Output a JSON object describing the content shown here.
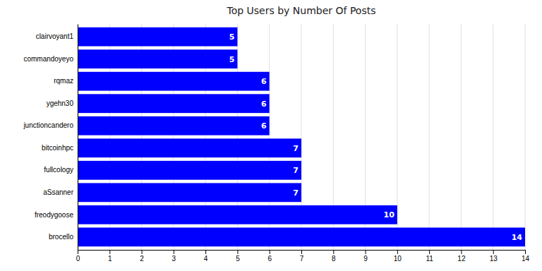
{
  "chart_data": {
    "type": "bar",
    "title": "Top Users by Number Of Posts",
    "orientation": "horizontal",
    "categories": [
      "clairvoyant1",
      "commandoyeyo",
      "rqmaz",
      "ygehn30",
      "junctioncandero",
      "bitcoinhpc",
      "fullcology",
      "aSsanner",
      "freodygoose",
      "brocello"
    ],
    "values": [
      5,
      5,
      6,
      6,
      6,
      7,
      7,
      7,
      10,
      14
    ],
    "color": "#0000ff",
    "xlim": [
      0,
      14
    ],
    "xticks": [
      0,
      1,
      2,
      3,
      4,
      5,
      6,
      7,
      8,
      9,
      10,
      11,
      12,
      13,
      14
    ],
    "grid": true,
    "data_labels": true
  }
}
